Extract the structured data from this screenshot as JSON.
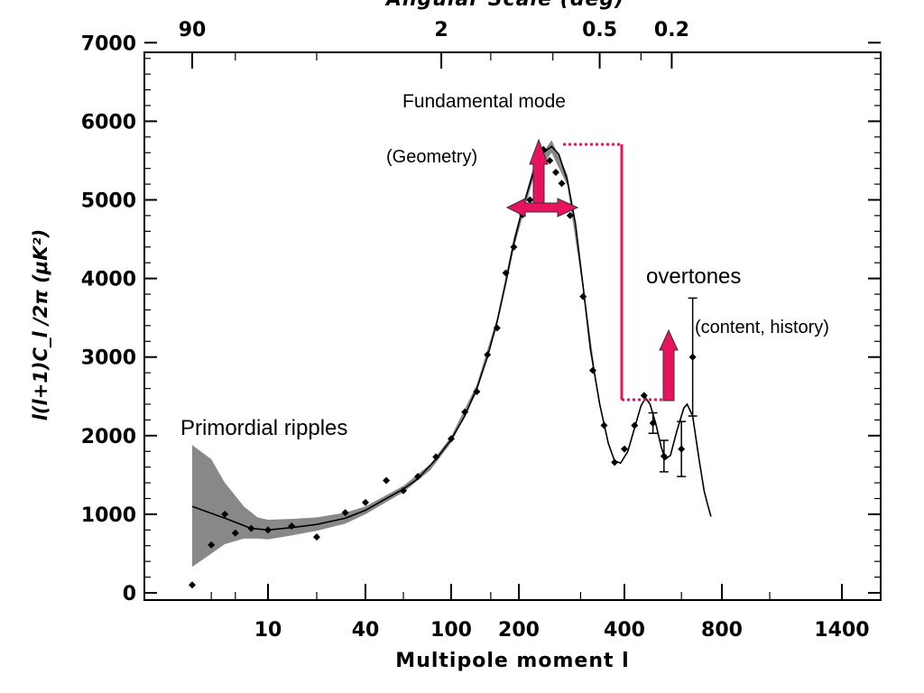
{
  "chart_data": {
    "type": "scatter",
    "title": "",
    "xlabel": "Multipole moment l",
    "ylabel": "l(l+1)C_l /2π (μK²)",
    "x2label": "Angular Scale (deg)",
    "x_scale": "nonlinear multipole",
    "ylim": [
      0,
      7000
    ],
    "xlim": [
      2,
      1500
    ],
    "x_ticks": [
      10,
      40,
      100,
      200,
      400,
      800,
      1400
    ],
    "x_tick_labels": [
      "10",
      "40",
      "100",
      "200",
      "400",
      "800",
      "1400"
    ],
    "y_ticks": [
      0,
      1000,
      2000,
      3000,
      4000,
      5000,
      6000,
      7000
    ],
    "y_tick_labels": [
      "0",
      "1000",
      "2000",
      "3000",
      "4000",
      "5000",
      "6000",
      "7000"
    ],
    "x2_ticks": [
      2,
      90,
      340,
      560
    ],
    "x2_tick_labels": [
      "90",
      "2",
      "0.5",
      "0.2"
    ],
    "grid": false,
    "band_color": "#888888",
    "accent_color": "#e8135f",
    "points": [
      {
        "x": 2,
        "y": 100
      },
      {
        "x": 3,
        "y": 610
      },
      {
        "x": 4,
        "y": 1000
      },
      {
        "x": 5,
        "y": 760
      },
      {
        "x": 7,
        "y": 820
      },
      {
        "x": 10,
        "y": 800
      },
      {
        "x": 14,
        "y": 850
      },
      {
        "x": 20,
        "y": 710
      },
      {
        "x": 30,
        "y": 1020
      },
      {
        "x": 40,
        "y": 1150
      },
      {
        "x": 50,
        "y": 1430
      },
      {
        "x": 60,
        "y": 1300
      },
      {
        "x": 70,
        "y": 1480
      },
      {
        "x": 85,
        "y": 1730
      },
      {
        "x": 100,
        "y": 1960
      },
      {
        "x": 115,
        "y": 2300
      },
      {
        "x": 130,
        "y": 2560
      },
      {
        "x": 145,
        "y": 3030
      },
      {
        "x": 160,
        "y": 3370
      },
      {
        "x": 175,
        "y": 4070
      },
      {
        "x": 190,
        "y": 4400
      },
      {
        "x": 205,
        "y": 4810
      },
      {
        "x": 215,
        "y": 5000
      },
      {
        "x": 225,
        "y": 5290
      },
      {
        "x": 235,
        "y": 5640
      },
      {
        "x": 245,
        "y": 5500
      },
      {
        "x": 255,
        "y": 5350
      },
      {
        "x": 265,
        "y": 5210
      },
      {
        "x": 280,
        "y": 4800
      },
      {
        "x": 305,
        "y": 3770
      },
      {
        "x": 325,
        "y": 2830
      },
      {
        "x": 350,
        "y": 2130
      },
      {
        "x": 375,
        "y": 1660
      },
      {
        "x": 400,
        "y": 1830
      },
      {
        "x": 430,
        "y": 2130
      },
      {
        "x": 460,
        "y": 2510
      },
      {
        "x": 490,
        "y": 2160,
        "err": 130
      },
      {
        "x": 530,
        "y": 1740,
        "err": 200
      },
      {
        "x": 600,
        "y": 1830,
        "err": 350
      },
      {
        "x": 650,
        "y": 3000,
        "err": 750
      }
    ],
    "model_curve": [
      [
        2,
        1100
      ],
      [
        4,
        950
      ],
      [
        7,
        820
      ],
      [
        10,
        800
      ],
      [
        14,
        830
      ],
      [
        20,
        870
      ],
      [
        30,
        950
      ],
      [
        40,
        1050
      ],
      [
        50,
        1200
      ],
      [
        60,
        1320
      ],
      [
        70,
        1450
      ],
      [
        85,
        1700
      ],
      [
        100,
        1950
      ],
      [
        115,
        2250
      ],
      [
        130,
        2600
      ],
      [
        145,
        3000
      ],
      [
        160,
        3450
      ],
      [
        175,
        3950
      ],
      [
        190,
        4450
      ],
      [
        205,
        4900
      ],
      [
        220,
        5350
      ],
      [
        235,
        5600
      ],
      [
        248,
        5680
      ],
      [
        260,
        5580
      ],
      [
        275,
        5250
      ],
      [
        290,
        4700
      ],
      [
        305,
        3900
      ],
      [
        320,
        3100
      ],
      [
        340,
        2400
      ],
      [
        360,
        1900
      ],
      [
        375,
        1680
      ],
      [
        390,
        1650
      ],
      [
        410,
        1800
      ],
      [
        430,
        2100
      ],
      [
        450,
        2380
      ],
      [
        465,
        2480
      ],
      [
        480,
        2400
      ],
      [
        500,
        2150
      ],
      [
        520,
        1850
      ],
      [
        535,
        1700
      ],
      [
        555,
        1750
      ],
      [
        580,
        2050
      ],
      [
        610,
        2350
      ],
      [
        625,
        2400
      ],
      [
        650,
        2250
      ],
      [
        680,
        1700
      ],
      [
        705,
        1300
      ],
      [
        720,
        1150
      ],
      [
        740,
        970
      ]
    ],
    "band_upper": [
      [
        2,
        1880
      ],
      [
        3,
        1700
      ],
      [
        4,
        1400
      ],
      [
        6,
        1100
      ],
      [
        8,
        960
      ],
      [
        10,
        930
      ],
      [
        14,
        940
      ],
      [
        20,
        960
      ],
      [
        30,
        1020
      ],
      [
        40,
        1100
      ],
      [
        60,
        1360
      ],
      [
        80,
        1640
      ],
      [
        100,
        1990
      ],
      [
        130,
        2650
      ],
      [
        160,
        3500
      ],
      [
        190,
        4520
      ],
      [
        220,
        5420
      ],
      [
        248,
        5760
      ],
      [
        275,
        5320
      ],
      [
        305,
        3960
      ],
      [
        330,
        2800
      ],
      [
        345,
        2300
      ]
    ],
    "band_lower": [
      [
        2,
        330
      ],
      [
        3,
        500
      ],
      [
        4,
        620
      ],
      [
        6,
        690
      ],
      [
        8,
        690
      ],
      [
        10,
        680
      ],
      [
        14,
        730
      ],
      [
        20,
        790
      ],
      [
        30,
        880
      ],
      [
        40,
        1000
      ],
      [
        60,
        1280
      ],
      [
        80,
        1560
      ],
      [
        100,
        1910
      ],
      [
        130,
        2550
      ],
      [
        160,
        3400
      ],
      [
        190,
        4380
      ],
      [
        220,
        5280
      ],
      [
        248,
        5600
      ],
      [
        275,
        5180
      ],
      [
        305,
        3840
      ],
      [
        330,
        2700
      ],
      [
        345,
        2300
      ]
    ],
    "annotations": {
      "fundamental": "Fundamental mode",
      "geometry": "(Geometry)",
      "overtones": "overtones",
      "content": "(content, history)",
      "primordial": "Primordial ripples"
    }
  }
}
